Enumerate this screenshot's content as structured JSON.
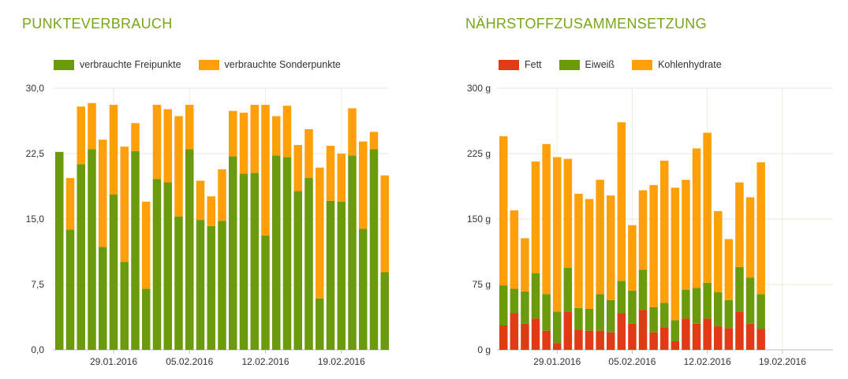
{
  "chart_data": [
    {
      "type": "bar",
      "stacked": true,
      "title": "PUNKTEVERBRAUCH",
      "xlabel": "",
      "ylabel": "",
      "ylim": [
        0,
        30
      ],
      "yticks": [
        "0,0",
        "7,5",
        "15,0",
        "22,5",
        "30,0"
      ],
      "ytick_values": [
        0,
        7.5,
        15,
        22.5,
        30
      ],
      "xtick_labels": [
        {
          "label": "29.01.2016",
          "index": 5
        },
        {
          "label": "05.02.2016",
          "index": 12
        },
        {
          "label": "12.02.2016",
          "index": 19
        },
        {
          "label": "19.02.2016",
          "index": 26
        }
      ],
      "grid": true,
      "legend_position": "top-left",
      "bar_count": 31,
      "series": [
        {
          "name": "verbrauchte Freipunkte",
          "color": "#6b9a0c",
          "values": [
            22.7,
            13.8,
            21.3,
            23.0,
            11.8,
            17.8,
            10.1,
            22.8,
            7.0,
            19.6,
            19.2,
            15.3,
            23.0,
            14.9,
            14.2,
            14.8,
            22.2,
            20.2,
            20.3,
            13.1,
            22.3,
            22.1,
            18.2,
            19.7,
            5.9,
            17.1,
            17.0,
            22.3,
            13.9,
            23.0,
            8.9
          ]
        },
        {
          "name": "verbrauchte Sonderpunkte",
          "color": "#ff9f0a",
          "values": [
            0,
            5.9,
            6.6,
            5.3,
            12.3,
            10.3,
            13.2,
            3.2,
            10.0,
            8.5,
            8.4,
            11.5,
            5.1,
            4.5,
            3.4,
            5.9,
            5.2,
            7.0,
            7.8,
            15.0,
            4.5,
            5.9,
            5.3,
            5.6,
            15.0,
            6.3,
            5.5,
            5.4,
            10.0,
            2.0,
            11.1
          ]
        }
      ]
    },
    {
      "type": "bar",
      "stacked": true,
      "title": "NÄHRSTOFFZUSAMMENSETZUNG",
      "xlabel": "",
      "ylabel": "",
      "ylim": [
        0,
        300
      ],
      "yticks": [
        "0 g",
        "75 g",
        "150 g",
        "225 g",
        "300 g"
      ],
      "ytick_values": [
        0,
        75,
        150,
        225,
        300
      ],
      "xtick_labels": [
        {
          "label": "29.01.2016",
          "index": 5
        },
        {
          "label": "05.02.2016",
          "index": 12
        },
        {
          "label": "12.02.2016",
          "index": 19
        },
        {
          "label": "19.02.2016",
          "index": 26
        }
      ],
      "grid": true,
      "legend_position": "top-left",
      "bar_count": 25,
      "series": [
        {
          "name": "Fett",
          "color": "#e03a17",
          "values": [
            28,
            42,
            30,
            36,
            22,
            8,
            44,
            23,
            22,
            22,
            20,
            42,
            30,
            46,
            20,
            26,
            10,
            36,
            30,
            36,
            27,
            25,
            44,
            30,
            24
          ]
        },
        {
          "name": "Eiweiß",
          "color": "#6b9a0c",
          "values": [
            46,
            28,
            37,
            52,
            42,
            36,
            50,
            25,
            25,
            42,
            37,
            37,
            38,
            46,
            29,
            28,
            24,
            33,
            41,
            41,
            39,
            32,
            51,
            53,
            40
          ]
        },
        {
          "name": "Kohlenhydrate",
          "color": "#ff9f0a",
          "values": [
            171,
            90,
            61,
            128,
            172,
            177,
            125,
            131,
            126,
            131,
            120,
            182,
            75,
            91,
            140,
            163,
            152,
            126,
            160,
            172,
            93,
            70,
            97,
            92,
            151
          ]
        }
      ]
    }
  ]
}
